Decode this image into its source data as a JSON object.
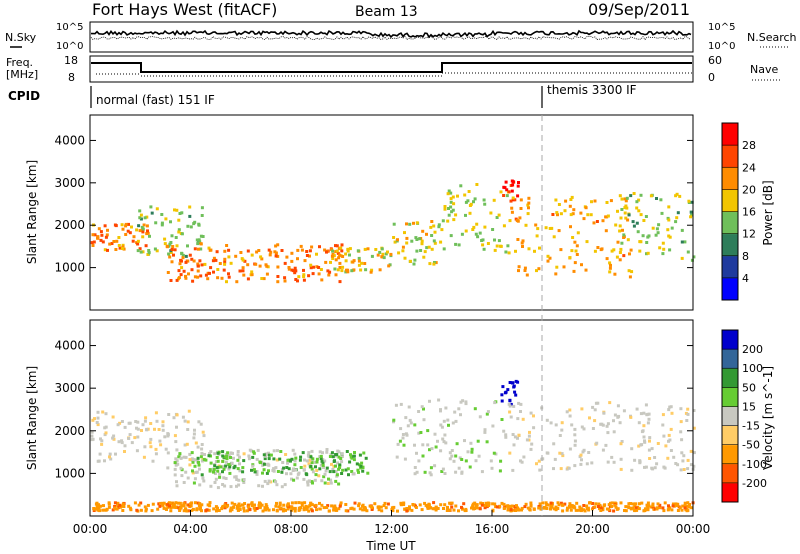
{
  "header": {
    "station": "Fort Hays West (fitACF)",
    "beam": "Beam 13",
    "date": "09/Sep/2011"
  },
  "strip_panels": {
    "left_labels": {
      "nsky": "N.Sky",
      "freq_line1": "Freq.",
      "freq_line2": "[MHz]",
      "cpid": "CPID"
    },
    "right_labels": {
      "nsearch": "N.Search",
      "nave": "Nave"
    },
    "noise_ticks_left": [
      "10^5",
      "10^0"
    ],
    "noise_ticks_right": [
      "10^5",
      "10^0"
    ],
    "freq_ticks_left": [
      "18",
      "8"
    ],
    "nave_ticks_right": [
      "60",
      "0"
    ],
    "cpid_modes": [
      {
        "label": "normal (fast) 151 IF",
        "start_hour": 0,
        "end_hour": 18
      },
      {
        "label": "themis 3300 IF",
        "start_hour": 18,
        "end_hour": 24
      }
    ]
  },
  "x_axis": {
    "label": "Time UT",
    "ticks": [
      "00:00",
      "04:00",
      "08:00",
      "12:00",
      "16:00",
      "20:00",
      "00:00"
    ]
  },
  "colors": {
    "power_scale": [
      "#0000ff",
      "#1f3a9e",
      "#2e7d5a",
      "#6fbf5a",
      "#f2c500",
      "#ff8c00",
      "#ff4500",
      "#ff0000"
    ],
    "velocity_scale": [
      "#ff0000",
      "#ff5500",
      "#ff9900",
      "#ffcc66",
      "#c8c8c0",
      "#66cc33",
      "#339933",
      "#336699",
      "#0000cc"
    ]
  },
  "chart_data": [
    {
      "type": "heatmap",
      "name": "power",
      "ylabel": "Slant Range [km]",
      "yticks": [
        "1000",
        "2000",
        "3000",
        "4000"
      ],
      "ylim": [
        0,
        4600
      ],
      "xlim": [
        0,
        24
      ],
      "colorbar": {
        "label": "Power [dB]",
        "ticks": [
          "4",
          "8",
          "12",
          "16",
          "20",
          "24",
          "28"
        ],
        "range": [
          0,
          32
        ]
      },
      "scatter_regions": [
        {
          "t0": 0.0,
          "t1": 2.3,
          "r0": 1400,
          "r1": 2100,
          "level": 0.75
        },
        {
          "t0": 1.8,
          "t1": 4.5,
          "r0": 1300,
          "r1": 2500,
          "level": 0.45
        },
        {
          "t0": 3.0,
          "t1": 10.0,
          "r0": 700,
          "r1": 1600,
          "level": 0.75
        },
        {
          "t0": 9.5,
          "t1": 12.0,
          "r0": 900,
          "r1": 1500,
          "level": 0.6
        },
        {
          "t0": 12.0,
          "t1": 14.0,
          "r0": 1100,
          "r1": 2200,
          "level": 0.55
        },
        {
          "t0": 14.0,
          "t1": 16.6,
          "r0": 1400,
          "r1": 3000,
          "level": 0.5
        },
        {
          "t0": 16.3,
          "t1": 17.0,
          "r0": 2600,
          "r1": 3200,
          "level": 0.95
        },
        {
          "t0": 16.6,
          "t1": 21.5,
          "r0": 800,
          "r1": 2700,
          "level": 0.65
        },
        {
          "t0": 21.0,
          "t1": 24.0,
          "r0": 1200,
          "r1": 2800,
          "level": 0.45
        }
      ]
    },
    {
      "type": "heatmap",
      "name": "velocity",
      "ylabel": "Slant Range [km]",
      "yticks": [
        "1000",
        "2000",
        "3000",
        "4000"
      ],
      "ylim": [
        0,
        4600
      ],
      "xlim": [
        0,
        24
      ],
      "colorbar": {
        "label": "Velocity [m s^-1]",
        "ticks": [
          "-200",
          "-100",
          "-50",
          "-15",
          "15",
          "50",
          "100",
          "200"
        ],
        "range": [
          -250,
          250
        ]
      },
      "scatter_regions": [
        {
          "t0": 0.0,
          "t1": 4.5,
          "r0": 1300,
          "r1": 2500,
          "level": -5
        },
        {
          "t0": 3.0,
          "t1": 10.0,
          "r0": 700,
          "r1": 1600,
          "level": 0
        },
        {
          "t0": 4.0,
          "t1": 11.0,
          "r0": 1000,
          "r1": 1550,
          "level": 30
        },
        {
          "t0": 12.0,
          "t1": 16.5,
          "r0": 1000,
          "r1": 2800,
          "level": 5
        },
        {
          "t0": 16.3,
          "t1": 17.0,
          "r0": 2600,
          "r1": 3200,
          "level": 180
        },
        {
          "t0": 16.6,
          "t1": 24.0,
          "r0": 1100,
          "r1": 2700,
          "level": -5
        },
        {
          "t0": 0.0,
          "t1": 24.0,
          "r0": 150,
          "r1": 350,
          "level": -60
        }
      ]
    }
  ]
}
